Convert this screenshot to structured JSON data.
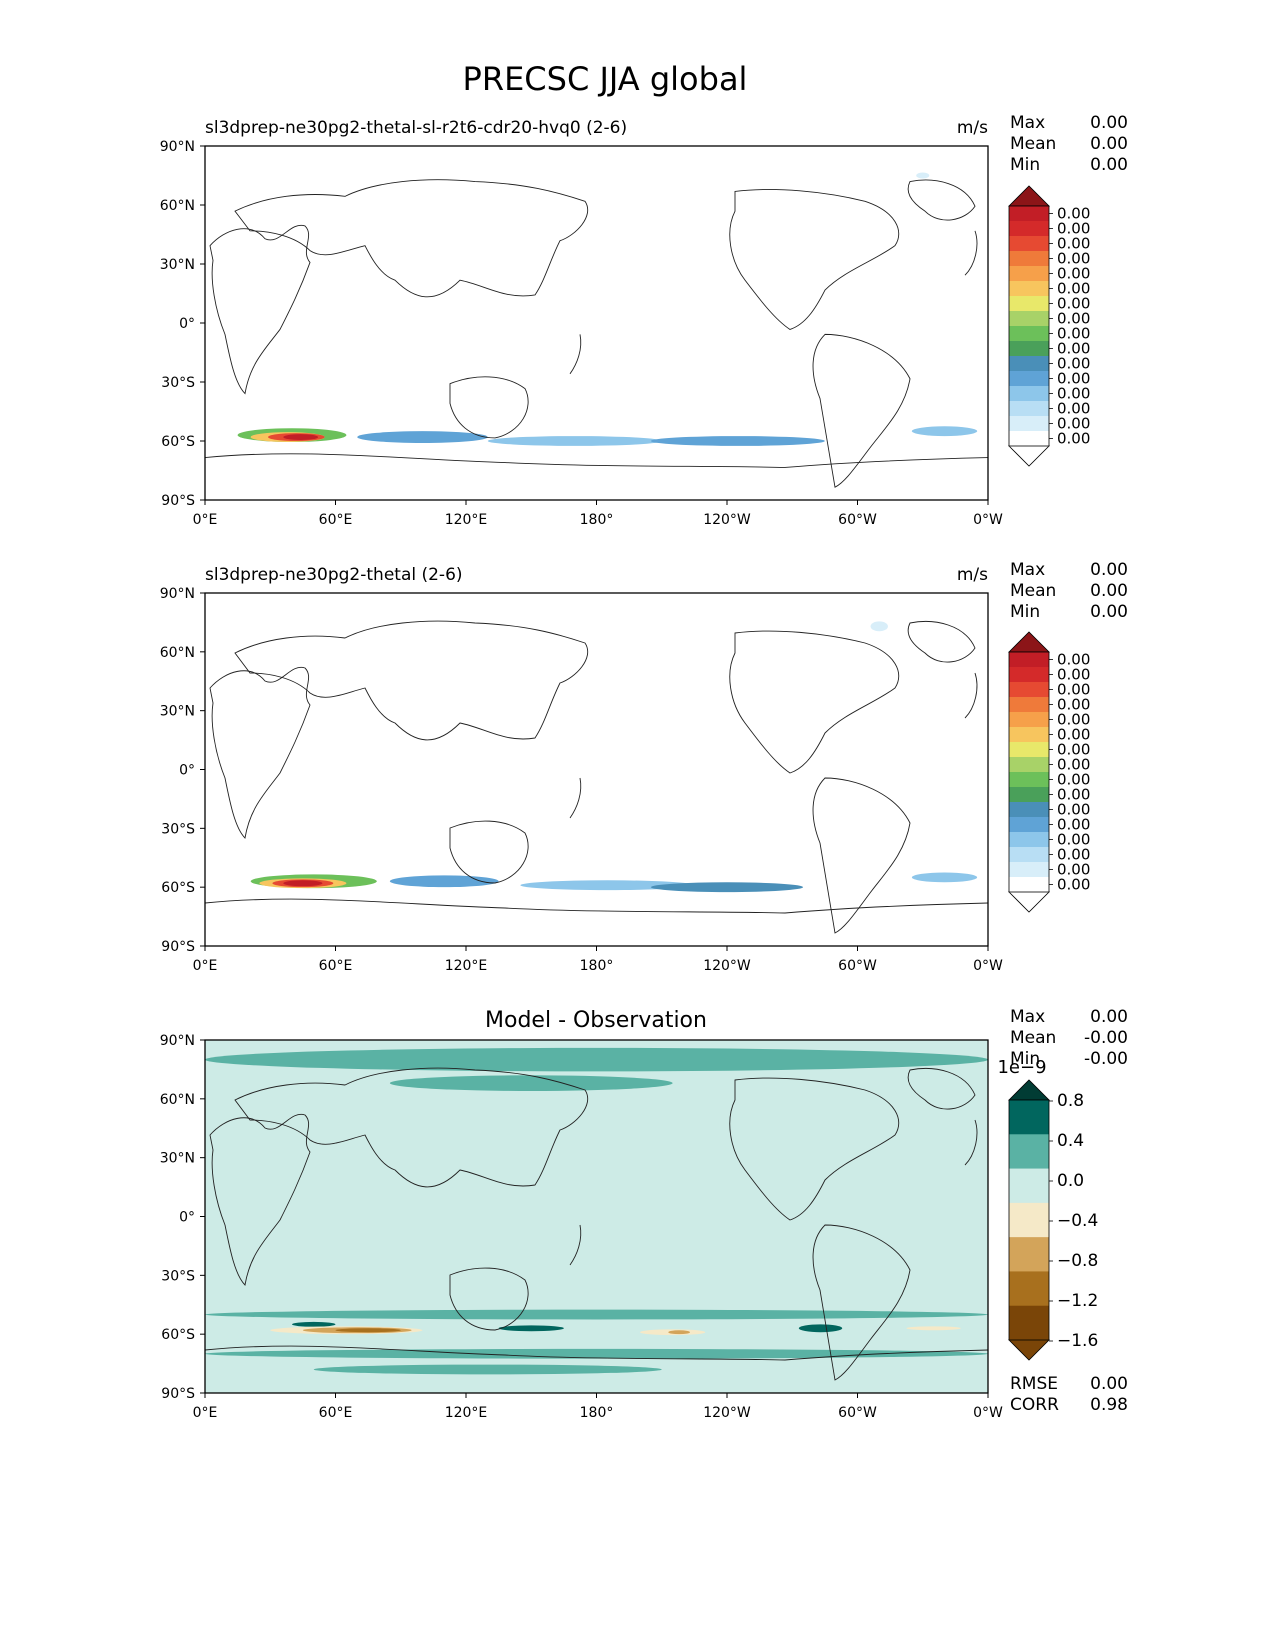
{
  "figure": {
    "title": "PRECSC JJA global"
  },
  "lon_ticks": [
    "0°E",
    "60°E",
    "120°E",
    "180°",
    "120°W",
    "60°W",
    "0°W"
  ],
  "lat_ticks": [
    "90°N",
    "60°N",
    "30°N",
    "0°",
    "30°S",
    "60°S",
    "90°S"
  ],
  "stat_labels": {
    "max": "Max",
    "mean": "Mean",
    "min": "Min",
    "rmse": "RMSE",
    "corr": "CORR"
  },
  "colors": {
    "seq": [
      "#ffffff",
      "#d8eef9",
      "#b8def4",
      "#8dc6ea",
      "#5fa3d6",
      "#4a8fb8",
      "#4aa05a",
      "#6cc05a",
      "#a8d268",
      "#e8e86a",
      "#f7c55e",
      "#f6a04a",
      "#ef7a3a",
      "#e64a32",
      "#d42a2a",
      "#c21e26",
      "#8c1518"
    ],
    "diff": [
      "#7a4508",
      "#a8701e",
      "#d3a45a",
      "#f5e9c8",
      "#cdebe6",
      "#5ab2a4",
      "#01665e",
      "#013c34"
    ]
  },
  "chart_data": [
    {
      "type": "heatmap",
      "panel": "test",
      "title": "sl3dprep-ne30pg2-thetal-sl-r2t6-cdr20-hvq0 (2-6)",
      "units": "m/s",
      "stats": {
        "max": "0.00",
        "mean": "0.00",
        "min": "0.00"
      },
      "colorbar_ticks": [
        "0.00",
        "0.00",
        "0.00",
        "0.00",
        "0.00",
        "0.00",
        "0.00",
        "0.00",
        "0.00",
        "0.00",
        "0.00",
        "0.00",
        "0.00",
        "0.00",
        "0.00",
        "0.00"
      ],
      "xlim": [
        0,
        360
      ],
      "ylim": [
        -90,
        90
      ],
      "features": [
        {
          "lon": 40,
          "lat": -57,
          "w": 50,
          "h": 7,
          "level": 7
        },
        {
          "lon": 38,
          "lat": -58,
          "w": 34,
          "h": 5,
          "level": 10
        },
        {
          "lon": 42,
          "lat": -58,
          "w": 26,
          "h": 4,
          "level": 13
        },
        {
          "lon": 44,
          "lat": -58,
          "w": 16,
          "h": 3,
          "level": 15
        },
        {
          "lon": 100,
          "lat": -58,
          "w": 60,
          "h": 6,
          "level": 4
        },
        {
          "lon": 170,
          "lat": -60,
          "w": 80,
          "h": 5,
          "level": 3
        },
        {
          "lon": 245,
          "lat": -60,
          "w": 80,
          "h": 5,
          "level": 4
        },
        {
          "lon": 340,
          "lat": -55,
          "w": 30,
          "h": 5,
          "level": 3
        },
        {
          "lon": 330,
          "lat": 75,
          "w": 6,
          "h": 3,
          "level": 1
        }
      ]
    },
    {
      "type": "heatmap",
      "panel": "reference",
      "title": "sl3dprep-ne30pg2-thetal (2-6)",
      "units": "m/s",
      "stats": {
        "max": "0.00",
        "mean": "0.00",
        "min": "0.00"
      },
      "colorbar_ticks": [
        "0.00",
        "0.00",
        "0.00",
        "0.00",
        "0.00",
        "0.00",
        "0.00",
        "0.00",
        "0.00",
        "0.00",
        "0.00",
        "0.00",
        "0.00",
        "0.00",
        "0.00",
        "0.00"
      ],
      "xlim": [
        0,
        360
      ],
      "ylim": [
        -90,
        90
      ],
      "features": [
        {
          "lon": 50,
          "lat": -57,
          "w": 58,
          "h": 7,
          "level": 7
        },
        {
          "lon": 45,
          "lat": -58,
          "w": 40,
          "h": 5,
          "level": 10
        },
        {
          "lon": 45,
          "lat": -58,
          "w": 28,
          "h": 4,
          "level": 13
        },
        {
          "lon": 45,
          "lat": -58,
          "w": 18,
          "h": 3,
          "level": 15
        },
        {
          "lon": 110,
          "lat": -57,
          "w": 50,
          "h": 6,
          "level": 4
        },
        {
          "lon": 185,
          "lat": -59,
          "w": 80,
          "h": 5,
          "level": 3
        },
        {
          "lon": 240,
          "lat": -60,
          "w": 70,
          "h": 5,
          "level": 5
        },
        {
          "lon": 340,
          "lat": -55,
          "w": 30,
          "h": 5,
          "level": 3
        },
        {
          "lon": 310,
          "lat": 73,
          "w": 8,
          "h": 5,
          "level": 1
        }
      ]
    },
    {
      "type": "heatmap",
      "panel": "difference",
      "title": "Model - Observation",
      "units": "",
      "stats": {
        "max": "0.00",
        "mean": "-0.00",
        "min": "-0.00",
        "rmse": "0.00",
        "corr": "0.98"
      },
      "colorbar_ticks": [
        "0.8",
        "0.4",
        "0.0",
        "−0.4",
        "−0.8",
        "−1.2",
        "−1.6"
      ],
      "colorbar_scale": "1e−9",
      "xlim": [
        0,
        360
      ],
      "ylim": [
        -90,
        90
      ],
      "features": [
        {
          "lon": 180,
          "lat": 80,
          "w": 360,
          "h": 12,
          "level": 5
        },
        {
          "lon": 150,
          "lat": 68,
          "w": 130,
          "h": 8,
          "level": 5
        },
        {
          "lon": 90,
          "lat": 80,
          "w": 120,
          "h": 6,
          "level": 5
        },
        {
          "lon": 180,
          "lat": -50,
          "w": 360,
          "h": 5,
          "level": 5
        },
        {
          "lon": 180,
          "lat": -70,
          "w": 360,
          "h": 5,
          "level": 5
        },
        {
          "lon": 130,
          "lat": -78,
          "w": 160,
          "h": 5,
          "level": 5
        },
        {
          "lon": 50,
          "lat": -55,
          "w": 20,
          "h": 2.5,
          "level": 6
        },
        {
          "lon": 150,
          "lat": -57,
          "w": 30,
          "h": 3,
          "level": 6
        },
        {
          "lon": 283,
          "lat": -57,
          "w": 20,
          "h": 4,
          "level": 6
        },
        {
          "lon": 65,
          "lat": -58,
          "w": 70,
          "h": 4,
          "level": 3
        },
        {
          "lon": 70,
          "lat": -58,
          "w": 50,
          "h": 3,
          "level": 2
        },
        {
          "lon": 75,
          "lat": -58,
          "w": 30,
          "h": 2,
          "level": 1
        },
        {
          "lon": 215,
          "lat": -59,
          "w": 30,
          "h": 3,
          "level": 3
        },
        {
          "lon": 218,
          "lat": -59,
          "w": 10,
          "h": 2,
          "level": 2
        },
        {
          "lon": 335,
          "lat": -57,
          "w": 25,
          "h": 2,
          "level": 3
        }
      ]
    }
  ]
}
